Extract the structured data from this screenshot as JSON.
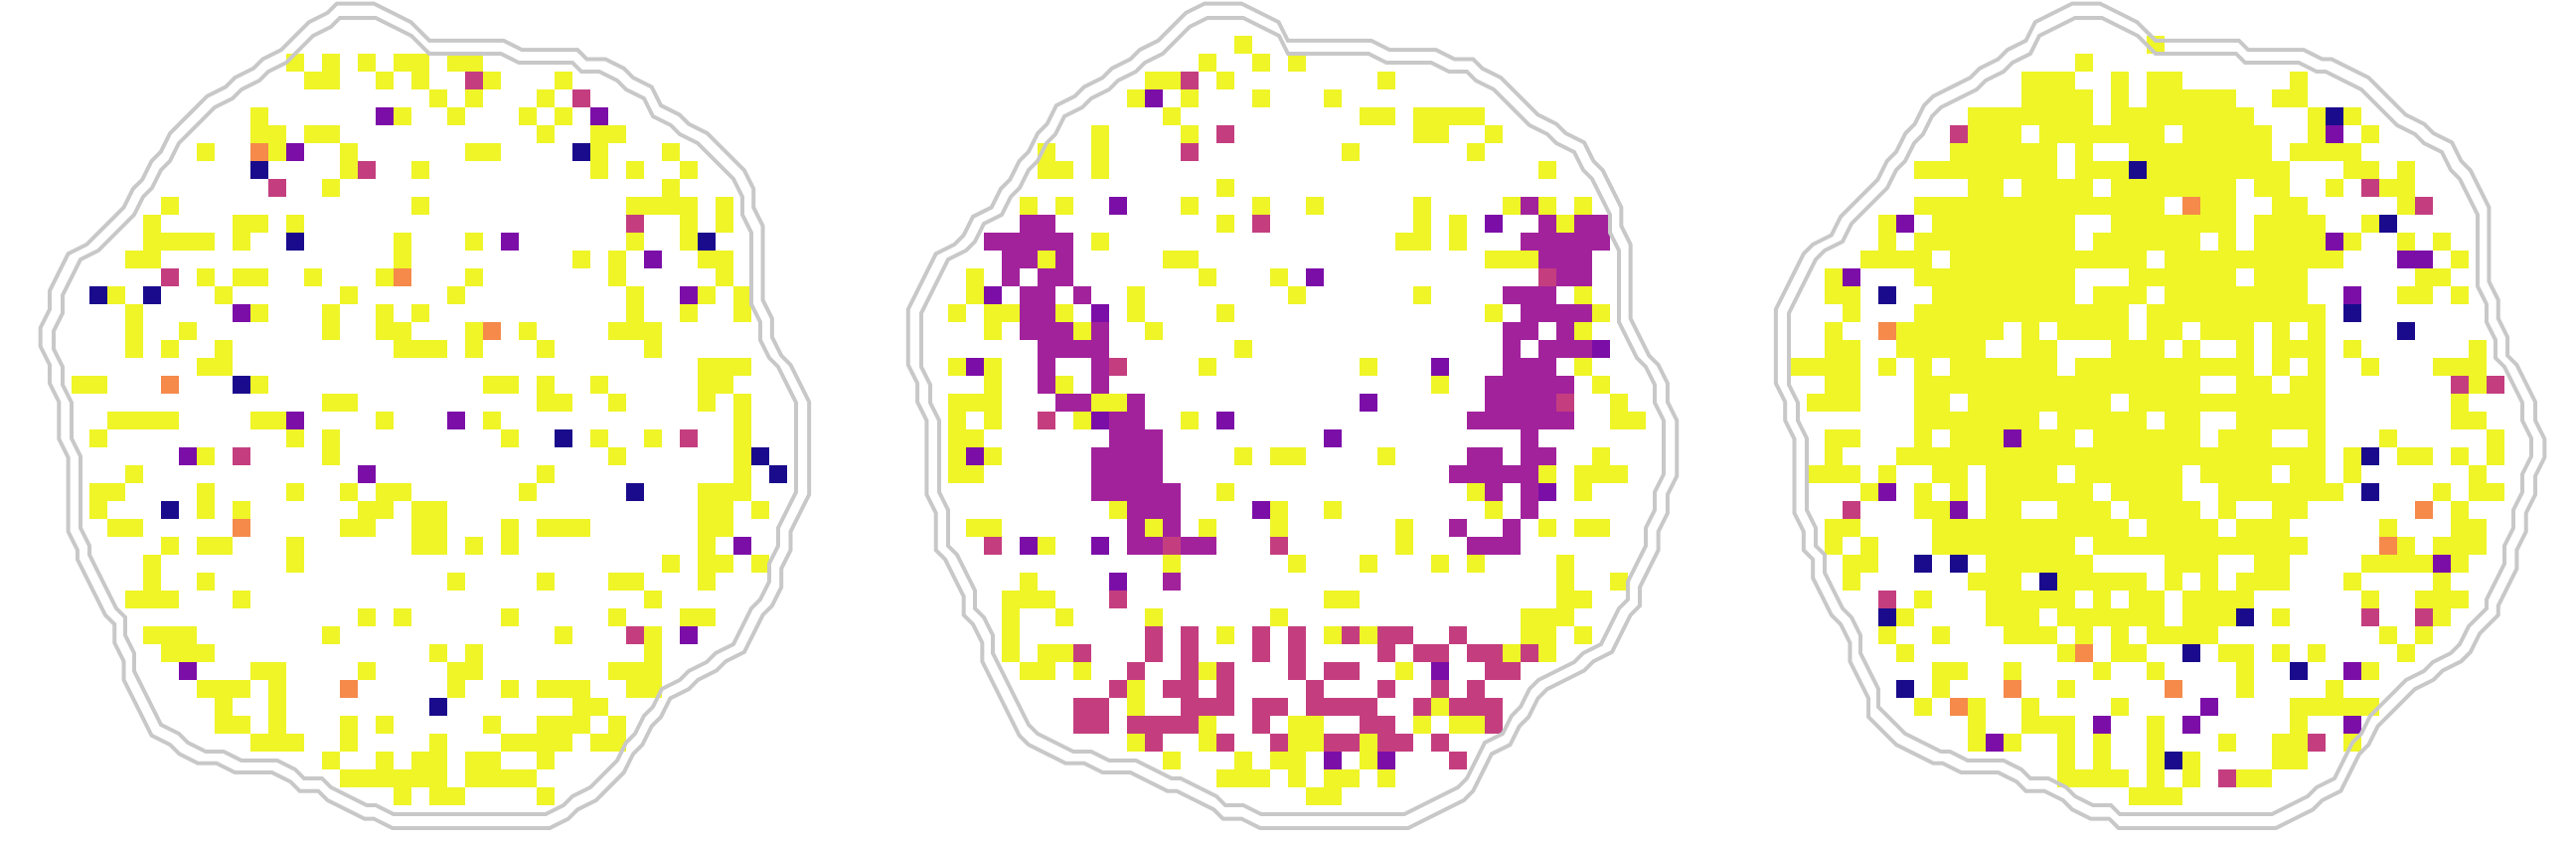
{
  "figure": {
    "panel_count": 3,
    "background": "#ffffff",
    "outline_color": "#c8c8c8",
    "colormap": "plasma",
    "palette": [
      "#ffffff",
      "#1a0b8c",
      "#4b039e",
      "#7c0ea8",
      "#a2229c",
      "#c43e7f",
      "#e16365",
      "#f58a4b",
      "#fdc33d",
      "#eff527"
    ]
  },
  "panels": [
    {
      "name": "left-slice",
      "clusters": [
        {
          "kind": "scatter",
          "color": "#eff527",
          "count": 220,
          "seed": 11
        },
        {
          "kind": "scatter",
          "color": "#7c0ea8",
          "count": 20,
          "seed": 12
        },
        {
          "kind": "scatter",
          "color": "#1a0b8c",
          "count": 14,
          "seed": 13
        },
        {
          "kind": "scatter",
          "color": "#c43e7f",
          "count": 14,
          "seed": 14
        },
        {
          "kind": "scatter",
          "color": "#f58a4b",
          "count": 8,
          "seed": 15
        },
        {
          "kind": "rim",
          "color": "#eff527",
          "count": 120,
          "seed": 16
        }
      ]
    },
    {
      "name": "middle-slice",
      "clusters": [
        {
          "kind": "scatter",
          "color": "#eff527",
          "count": 120,
          "seed": 21
        },
        {
          "kind": "scatter",
          "color": "#c43e7f",
          "count": 24,
          "seed": 22
        },
        {
          "kind": "scatter",
          "color": "#7c0ea8",
          "count": 24,
          "seed": 23
        },
        {
          "kind": "band-left",
          "color": "#a2229c",
          "count": 140,
          "seed": 24
        },
        {
          "kind": "band-right",
          "color": "#a2229c",
          "count": 120,
          "seed": 25
        },
        {
          "kind": "band-bottom",
          "color": "#c43e7f",
          "count": 90,
          "seed": 26
        },
        {
          "kind": "rim",
          "color": "#eff527",
          "count": 140,
          "seed": 27
        }
      ]
    },
    {
      "name": "right-slice",
      "clusters": [
        {
          "kind": "blob",
          "color": "#eff527",
          "count": 900,
          "seed": 31
        },
        {
          "kind": "scatter",
          "color": "#eff527",
          "count": 200,
          "seed": 32
        },
        {
          "kind": "scatter",
          "color": "#7c0ea8",
          "count": 36,
          "seed": 33
        },
        {
          "kind": "scatter",
          "color": "#1a0b8c",
          "count": 30,
          "seed": 34
        },
        {
          "kind": "scatter",
          "color": "#c43e7f",
          "count": 20,
          "seed": 35
        },
        {
          "kind": "scatter",
          "color": "#f58a4b",
          "count": 16,
          "seed": 36
        },
        {
          "kind": "rim",
          "color": "#eff527",
          "count": 150,
          "seed": 37
        }
      ]
    }
  ]
}
